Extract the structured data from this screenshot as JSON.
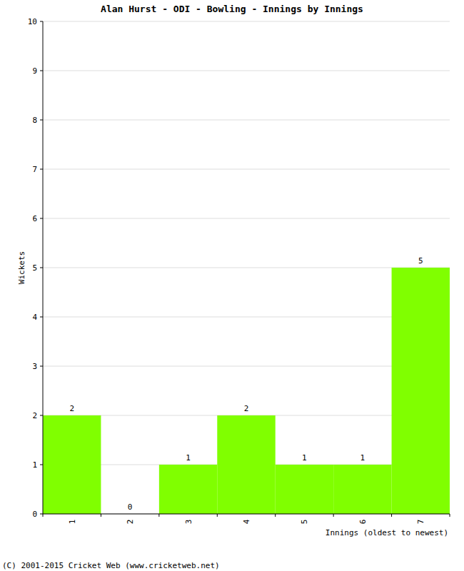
{
  "chart_data": {
    "type": "bar",
    "title": "Alan Hurst - ODI - Bowling - Innings by Innings",
    "categories": [
      "1",
      "2",
      "3",
      "4",
      "5",
      "6",
      "7"
    ],
    "values": [
      2,
      0,
      1,
      2,
      1,
      1,
      5
    ],
    "color": "#80ff00",
    "x_label": "Innings (oldest to newest)",
    "y_label": "Wickets",
    "ylim": [
      0,
      10
    ],
    "yticks": [
      0,
      1,
      2,
      3,
      4,
      5,
      6,
      7,
      8,
      9,
      10
    ],
    "grid": true,
    "data_labels": true,
    "credit": "(C) 2001-2015 Cricket Web (www.cricketweb.net)"
  }
}
